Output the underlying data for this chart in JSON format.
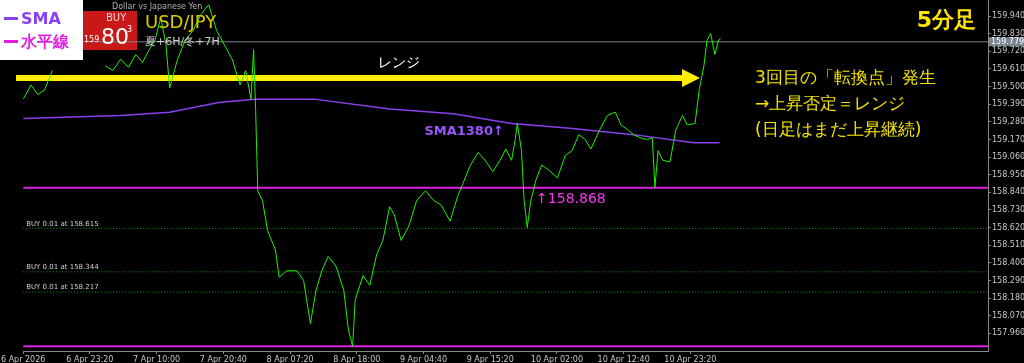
{
  "chart_data": {
    "type": "line",
    "title": "USD/JPY",
    "subtitle": "5分足",
    "xlim": [
      "2026-04-06T12:40",
      "2026-04-12T22:55"
    ],
    "xticks": [
      {
        "value": "2026-04-06T12:40",
        "label": "6 Apr 2026"
      },
      {
        "value": "2026-04-06T23:20",
        "label": "6 Apr 23:20"
      },
      {
        "value": "2026-04-07T10:00",
        "label": "7 Apr 10:00"
      },
      {
        "value": "2026-04-07T20:40",
        "label": "7 Apr 20:40"
      },
      {
        "value": "2026-04-08T07:20",
        "label": "8 Apr 07:20"
      },
      {
        "value": "2026-04-08T18:00",
        "label": "8 Apr 18:00"
      },
      {
        "value": "2026-04-09T04:40",
        "label": "9 Apr 04:40"
      },
      {
        "value": "2026-04-09T15:20",
        "label": "9 Apr 15:20"
      },
      {
        "value": "2026-04-10T02:00",
        "label": "10 Apr 02:00"
      },
      {
        "value": "2026-04-10T12:40",
        "label": "10 Apr 12:40"
      },
      {
        "value": "2026-04-10T23:20",
        "label": "10 Apr 23:20"
      }
    ],
    "ylim": [
      157.85,
      160.04
    ],
    "yticks": [
      {
        "value": 157.96,
        "label": "157.960"
      },
      {
        "value": 158.07,
        "label": "158.070"
      },
      {
        "value": 158.18,
        "label": "158.180"
      },
      {
        "value": 158.29,
        "label": "158.290"
      },
      {
        "value": 158.4,
        "label": "158.400"
      },
      {
        "value": 158.51,
        "label": "158.510"
      },
      {
        "value": 158.62,
        "label": "158.620"
      },
      {
        "value": 158.73,
        "label": "158.730"
      },
      {
        "value": 158.84,
        "label": "158.840"
      },
      {
        "value": 158.95,
        "label": "158.950"
      },
      {
        "value": 159.06,
        "label": "159.060"
      },
      {
        "value": 159.17,
        "label": "159.170"
      },
      {
        "value": 159.28,
        "label": "159.280"
      },
      {
        "value": 159.39,
        "label": "159.390"
      },
      {
        "value": 159.5,
        "label": "159.500"
      },
      {
        "value": 159.61,
        "label": "159.610"
      },
      {
        "value": 159.72,
        "label": "159.720"
      },
      {
        "value": 159.83,
        "label": "159.830"
      },
      {
        "value": 159.94,
        "label": "159.940"
      }
    ],
    "grid": false,
    "legend": "top left",
    "marker": "none",
    "line_style": "solid",
    "series": [
      {
        "color": "#22ee00",
        "x": [
          "2026-04-06T12:40",
          "2026-04-06T13:55",
          "2026-04-06T15:00",
          "2026-04-06T16:05",
          "2026-04-06T17:20",
          "2026-04-06T21:15",
          "2026-04-07T01:45",
          "2026-04-07T03:00",
          "2026-04-07T04:15",
          "2026-04-07T05:30",
          "2026-04-07T06:40",
          "2026-04-07T07:45",
          "2026-04-07T08:40",
          "2026-04-07T09:45",
          "2026-04-07T10:40",
          "2026-04-07T11:30",
          "2026-04-07T12:05",
          "2026-04-07T13:20",
          "2026-04-07T14:35",
          "2026-04-07T15:50",
          "2026-04-07T17:05",
          "2026-04-07T18:20",
          "2026-04-07T19:35",
          "2026-04-07T20:50",
          "2026-04-07T22:05",
          "2026-04-07T23:20",
          "2026-04-08T00:15",
          "2026-04-08T01:05",
          "2026-04-08T01:30",
          "2026-04-08T01:50",
          "2026-04-08T02:10",
          "2026-04-08T02:55",
          "2026-04-08T03:45",
          "2026-04-08T05:00",
          "2026-04-08T05:35",
          "2026-04-08T06:50",
          "2026-04-08T08:25",
          "2026-04-08T09:30",
          "2026-04-08T10:35",
          "2026-04-08T11:30",
          "2026-04-08T12:25",
          "2026-04-08T13:25",
          "2026-04-08T14:40",
          "2026-04-08T15:55",
          "2026-04-08T16:40",
          "2026-04-08T17:20",
          "2026-04-08T17:45",
          "2026-04-08T19:00",
          "2026-04-08T20:05",
          "2026-04-08T21:10",
          "2026-04-08T22:10",
          "2026-04-08T23:15",
          "2026-04-09T00:00",
          "2026-04-09T01:05",
          "2026-04-09T02:20",
          "2026-04-09T03:35",
          "2026-04-09T05:00",
          "2026-04-09T06:15",
          "2026-04-09T07:30",
          "2026-04-09T08:55",
          "2026-04-09T10:10",
          "2026-04-09T10:55",
          "2026-04-09T12:10",
          "2026-04-09T13:25",
          "2026-04-09T14:30",
          "2026-04-09T15:45",
          "2026-04-09T16:55",
          "2026-04-09T17:50",
          "2026-04-09T18:45",
          "2026-04-09T19:20",
          "2026-04-09T19:40",
          "2026-04-09T20:20",
          "2026-04-09T20:45",
          "2026-04-09T21:15",
          "2026-04-09T21:50",
          "2026-04-09T22:40",
          "2026-04-09T23:35",
          "2026-04-10T00:40",
          "2026-04-10T02:05",
          "2026-04-10T03:20",
          "2026-04-10T04:25",
          "2026-04-10T05:30",
          "2026-04-10T06:30",
          "2026-04-10T07:25",
          "2026-04-10T08:50",
          "2026-04-10T10:05",
          "2026-04-10T11:20",
          "2026-04-10T12:15",
          "2026-04-10T13:20",
          "2026-04-10T14:15",
          "2026-04-10T15:20",
          "2026-04-10T16:20",
          "2026-04-10T17:15",
          "2026-04-10T17:40",
          "2026-04-10T18:10",
          "2026-04-10T18:55",
          "2026-04-10T20:05",
          "2026-04-10T21:00",
          "2026-04-10T22:05",
          "2026-04-10T22:50",
          "2026-04-11T00:05",
          "2026-04-11T00:45",
          "2026-04-11T01:30",
          "2026-04-11T02:00",
          "2026-04-11T02:35",
          "2026-04-11T03:15",
          "2026-04-11T03:50",
          "2026-04-11T04:10"
        ],
        "values": [
          159.42,
          159.51,
          159.45,
          159.48,
          159.6,
          null,
          159.63,
          159.6,
          159.67,
          159.62,
          159.7,
          159.65,
          159.72,
          159.79,
          159.93,
          159.76,
          159.49,
          159.67,
          159.79,
          159.85,
          159.95,
          160.01,
          159.85,
          159.76,
          159.67,
          159.51,
          159.6,
          159.42,
          159.73,
          159.35,
          158.85,
          158.79,
          158.6,
          158.48,
          158.31,
          158.35,
          158.35,
          158.29,
          158.02,
          158.23,
          158.35,
          158.44,
          158.38,
          158.23,
          157.98,
          157.88,
          158.17,
          158.32,
          158.26,
          158.45,
          158.54,
          158.75,
          158.7,
          158.54,
          158.63,
          158.79,
          158.85,
          158.79,
          158.76,
          158.66,
          158.82,
          158.89,
          159.01,
          159.09,
          159.04,
          158.97,
          159.04,
          159.11,
          159.04,
          159.17,
          159.27,
          159.1,
          158.79,
          158.62,
          158.79,
          158.92,
          159.01,
          158.98,
          158.93,
          159.07,
          159.1,
          159.2,
          159.17,
          159.11,
          159.23,
          159.32,
          159.34,
          159.26,
          159.23,
          159.2,
          159.18,
          159.17,
          159.18,
          158.87,
          159.1,
          159.04,
          159.03,
          159.23,
          159.32,
          159.26,
          159.27,
          159.48,
          159.63,
          159.79,
          159.83,
          159.7,
          159.79,
          159.8
        ]
      },
      {
        "name": "SMA",
        "color": "#8a3ff0",
        "x": [
          "2026-04-06T12:40",
          "2026-04-07T04:15",
          "2026-04-07T12:05",
          "2026-04-07T19:55",
          "2026-04-08T01:40",
          "2026-04-08T11:30",
          "2026-04-08T23:15",
          "2026-04-09T09:25",
          "2026-04-09T18:45",
          "2026-04-10T04:05",
          "2026-04-10T14:15",
          "2026-04-10T23:55",
          "2026-04-11T04:00"
        ],
        "values": [
          159.3,
          159.32,
          159.34,
          159.4,
          159.42,
          159.42,
          159.36,
          159.33,
          159.27,
          159.24,
          159.2,
          159.15,
          159.15
        ]
      },
      {
        "name": "水平線",
        "color": "#e020e0",
        "x": [
          "2026-04-06T12:40",
          "2026-04-12T22:55"
        ],
        "values": [
          158.868,
          158.868
        ]
      },
      {
        "color": "#e020e0",
        "x": [
          "2026-04-06T12:40",
          "2026-04-12T22:55"
        ],
        "values": [
          157.88,
          157.88
        ]
      }
    ],
    "ref_lines": [
      {
        "axis": "y",
        "value": 158.615,
        "label": "BUY 0.01 at 158.615",
        "color": "#1f8f1f",
        "line_style": "dotted"
      },
      {
        "axis": "y",
        "value": 158.344,
        "label": "BUY 0.01 at 158.344",
        "color": "#1f8f1f",
        "line_style": "dotted"
      },
      {
        "axis": "y",
        "value": 158.217,
        "label": "BUY 0.01 at 158.217",
        "color": "#1f8f1f",
        "line_style": "dotted"
      },
      {
        "axis": "y",
        "value": 159.779,
        "label": "159.779",
        "color": "#7a8590",
        "line_style": "solid"
      }
    ],
    "annotations": [
      "Dollar vs Japanese Yen",
      "夏+6H/冬+7H",
      "BUY",
      "159",
      "80",
      "3",
      "レンジ",
      "3回目の「転換点」発生",
      "→上昇否定＝レンジ",
      "(日足はまだ上昇継続)",
      {
        "text": "SMA1380↑",
        "x": "2026-04-09T17:50",
        "y": 159.27
      },
      {
        "text": "↑158.868",
        "x": "2026-04-09T22:40",
        "y": 158.868
      }
    ]
  }
}
